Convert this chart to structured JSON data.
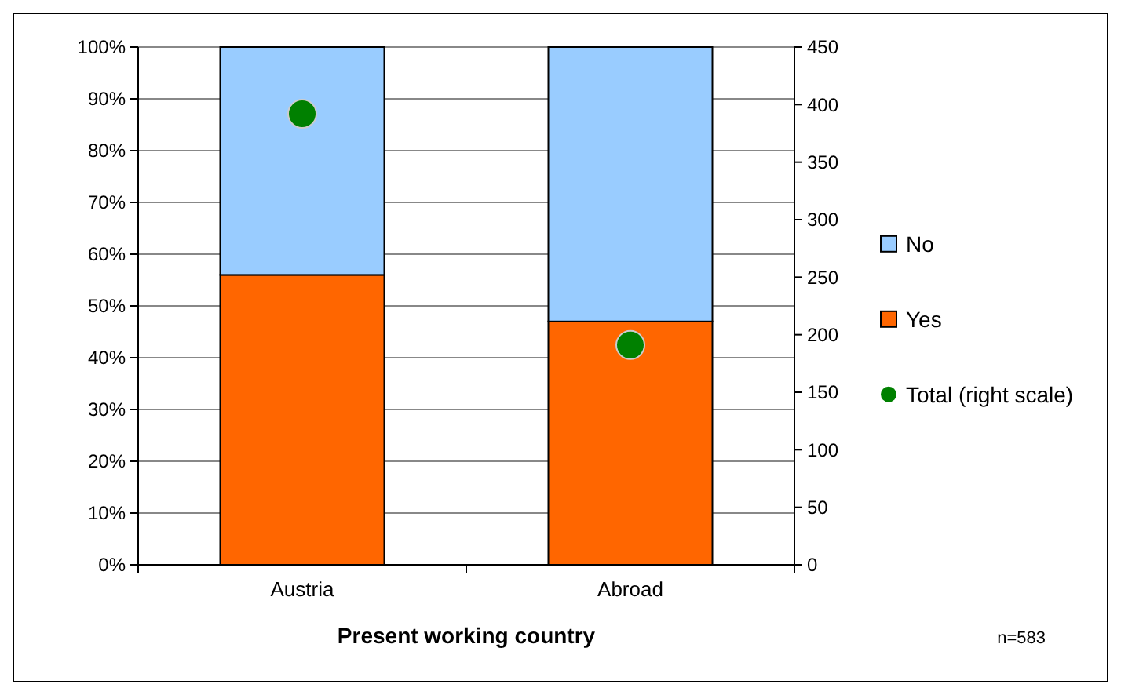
{
  "chart_data": {
    "type": "bar",
    "stacked": true,
    "xlabel": "Present working country",
    "categories": [
      "Austria",
      "Abroad"
    ],
    "series": [
      {
        "name": "Yes",
        "color": "#ff6600",
        "values": [
          56,
          47
        ]
      },
      {
        "name": "No",
        "color": "#99ccff",
        "values": [
          44,
          53
        ]
      },
      {
        "name": "Total (right scale)",
        "type": "scatter",
        "axis": "y2",
        "color": "#008000",
        "x": [
          "Austria",
          "Abroad"
        ],
        "values": [
          392,
          191
        ]
      }
    ],
    "ylim": [
      0,
      100
    ],
    "yticks": [
      {
        "value": 0,
        "label": "0%"
      },
      {
        "value": 10,
        "label": "10%"
      },
      {
        "value": 20,
        "label": "20%"
      },
      {
        "value": 30,
        "label": "30%"
      },
      {
        "value": 40,
        "label": "40%"
      },
      {
        "value": 50,
        "label": "50%"
      },
      {
        "value": 60,
        "label": "60%"
      },
      {
        "value": 70,
        "label": "70%"
      },
      {
        "value": 80,
        "label": "80%"
      },
      {
        "value": 90,
        "label": "90%"
      },
      {
        "value": 100,
        "label": "100%"
      }
    ],
    "y2lim": [
      0,
      450
    ],
    "y2ticks": [
      0,
      50,
      100,
      150,
      200,
      250,
      300,
      350,
      400,
      450
    ],
    "grid": "y",
    "legend": "right",
    "marker": "circle",
    "annotations": [
      "n=583"
    ]
  }
}
